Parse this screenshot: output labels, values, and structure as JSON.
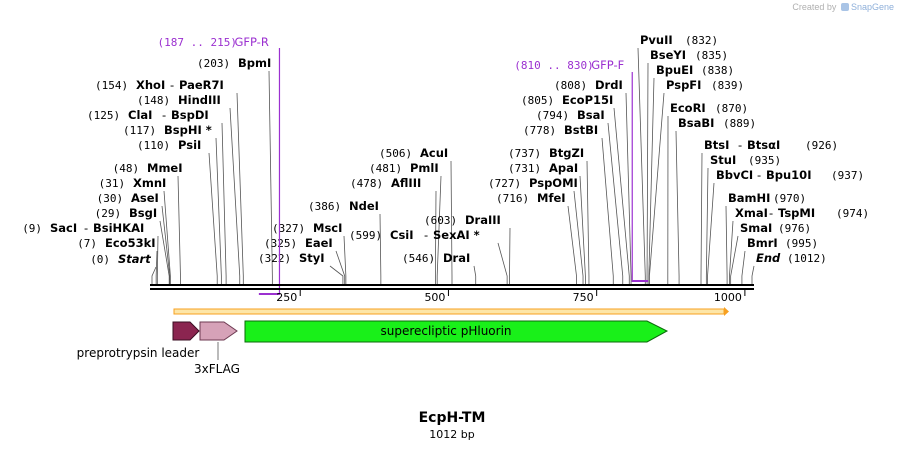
{
  "credit": {
    "prefix": "Created by",
    "brand": "SnapGene"
  },
  "sequence": {
    "name": "EcpH-TM",
    "length_label": "1012 bp",
    "length": 1012
  },
  "colors": {
    "primer": "#9b30d0",
    "backbone": "#000000",
    "feature_green": "#19f019",
    "feature_leader": "#8b2550",
    "feature_flag": "#d6a2b8",
    "orf": "#f7a020"
  },
  "ruler": {
    "ticks": [
      250,
      500,
      750,
      1000
    ],
    "tick_labels": [
      "250",
      "500",
      "750",
      "1000"
    ]
  },
  "primers": [
    {
      "name": "GFP-R",
      "range": "(187 .. 215)",
      "start": 187,
      "end": 215,
      "dir": "reverse"
    },
    {
      "name": "GFP-F",
      "range": "(810 .. 830)",
      "start": 810,
      "end": 830,
      "dir": "forward"
    }
  ],
  "sites": [
    {
      "pos": 0,
      "names": [
        "Start"
      ],
      "pos_label": "(0)",
      "italic": true
    },
    {
      "pos": 7,
      "names": [
        "Eco53kI"
      ],
      "pos_label": "(7)"
    },
    {
      "pos": 9,
      "names": [
        "SacI",
        "BsiHKAI"
      ],
      "pos_label": "(9)"
    },
    {
      "pos": 29,
      "names": [
        "BsgI"
      ],
      "pos_label": "(29)"
    },
    {
      "pos": 30,
      "names": [
        "AseI"
      ],
      "pos_label": "(30)"
    },
    {
      "pos": 31,
      "names": [
        "XmnI"
      ],
      "pos_label": "(31)"
    },
    {
      "pos": 48,
      "names": [
        "MmeI"
      ],
      "pos_label": "(48)"
    },
    {
      "pos": 110,
      "names": [
        "PsiI"
      ],
      "pos_label": "(110)"
    },
    {
      "pos": 117,
      "names": [
        "BspHI *"
      ],
      "pos_label": "(117)"
    },
    {
      "pos": 125,
      "names": [
        "ClaI",
        "BspDI"
      ],
      "pos_label": "(125)"
    },
    {
      "pos": 148,
      "names": [
        "HindIII"
      ],
      "pos_label": "(148)"
    },
    {
      "pos": 154,
      "names": [
        "XhoI",
        "PaeR7I"
      ],
      "pos_label": "(154)"
    },
    {
      "pos": 203,
      "names": [
        "BpmI"
      ],
      "pos_label": "(203)"
    },
    {
      "pos": 322,
      "names": [
        "StyI"
      ],
      "pos_label": "(322)"
    },
    {
      "pos": 325,
      "names": [
        "EaeI"
      ],
      "pos_label": "(325)"
    },
    {
      "pos": 327,
      "names": [
        "MscI"
      ],
      "pos_label": "(327)"
    },
    {
      "pos": 386,
      "names": [
        "NdeI"
      ],
      "pos_label": "(386)"
    },
    {
      "pos": 478,
      "names": [
        "AflIII"
      ],
      "pos_label": "(478)"
    },
    {
      "pos": 481,
      "names": [
        "PmlI"
      ],
      "pos_label": "(481)"
    },
    {
      "pos": 506,
      "names": [
        "AcuI"
      ],
      "pos_label": "(506)"
    },
    {
      "pos": 546,
      "names": [
        "DraI"
      ],
      "pos_label": "(546)"
    },
    {
      "pos": 599,
      "names": [
        "CsiI",
        "SexAI *"
      ],
      "pos_label": "(599)"
    },
    {
      "pos": 603,
      "names": [
        "DraIII"
      ],
      "pos_label": "(603)"
    },
    {
      "pos": 716,
      "names": [
        "MfeI"
      ],
      "pos_label": "(716)"
    },
    {
      "pos": 727,
      "names": [
        "PspOMI"
      ],
      "pos_label": "(727)"
    },
    {
      "pos": 731,
      "names": [
        "ApaI"
      ],
      "pos_label": "(731)"
    },
    {
      "pos": 737,
      "names": [
        "BtgZI"
      ],
      "pos_label": "(737)"
    },
    {
      "pos": 778,
      "names": [
        "BstBI"
      ],
      "pos_label": "(778)"
    },
    {
      "pos": 794,
      "names": [
        "BsaI"
      ],
      "pos_label": "(794)"
    },
    {
      "pos": 805,
      "names": [
        "EcoP15I"
      ],
      "pos_label": "(805)"
    },
    {
      "pos": 808,
      "names": [
        "DrdI"
      ],
      "pos_label": "(808)"
    },
    {
      "pos": 832,
      "names": [
        "PvuII"
      ],
      "pos_label": "(832)"
    },
    {
      "pos": 835,
      "names": [
        "BseYI"
      ],
      "pos_label": "(835)"
    },
    {
      "pos": 838,
      "names": [
        "BpuEI"
      ],
      "pos_label": "(838)"
    },
    {
      "pos": 839,
      "names": [
        "PspFI"
      ],
      "pos_label": "(839)"
    },
    {
      "pos": 870,
      "names": [
        "EcoRI"
      ],
      "pos_label": "(870)"
    },
    {
      "pos": 889,
      "names": [
        "BsaBI"
      ],
      "pos_label": "(889)"
    },
    {
      "pos": 926,
      "names": [
        "BtsI",
        "BtsαI"
      ],
      "pos_label": "(926)"
    },
    {
      "pos": 935,
      "names": [
        "StuI"
      ],
      "pos_label": "(935)"
    },
    {
      "pos": 937,
      "names": [
        "BbvCI",
        "Bpu10I"
      ],
      "pos_label": "(937)"
    },
    {
      "pos": 970,
      "names": [
        "BamHI"
      ],
      "pos_label": "(970)"
    },
    {
      "pos": 974,
      "names": [
        "XmaI",
        "TspMI"
      ],
      "pos_label": "(974)"
    },
    {
      "pos": 976,
      "names": [
        "SmaI"
      ],
      "pos_label": "(976)"
    },
    {
      "pos": 995,
      "names": [
        "BmrI"
      ],
      "pos_label": "(995)"
    },
    {
      "pos": 1012,
      "names": [
        "End"
      ],
      "pos_label": "(1012)",
      "italic": true
    }
  ],
  "features": [
    {
      "name": "preprotrypsin leader",
      "start": 0,
      "end": 27,
      "color": "#8b2550"
    },
    {
      "name": "3xFLAG",
      "start": 28,
      "end": 103,
      "color": "#d6a2b8"
    },
    {
      "name": "superecliptic pHluorin",
      "start": 106,
      "end": 843,
      "color": "#19f019"
    }
  ],
  "orf": {
    "start": 0,
    "end": 1012
  }
}
